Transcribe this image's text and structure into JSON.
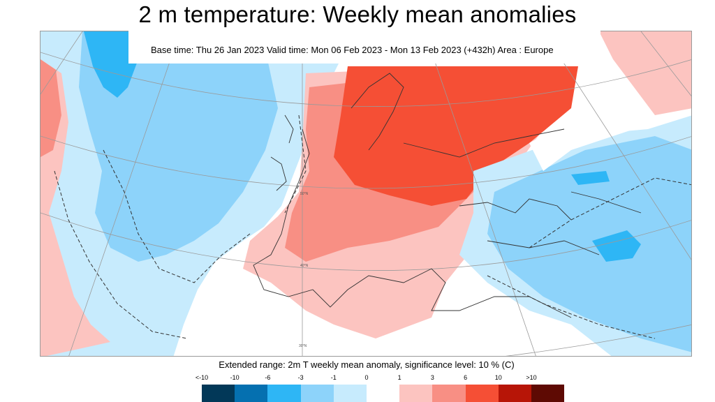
{
  "title": "2 m temperature: Weekly mean anomalies",
  "subtitle": "Base time: Thu 26 Jan 2023 Valid time: Mon 06 Feb 2023 - Mon 13 Feb 2023 (+432h) Area : Europe",
  "colorbar": {
    "caption": "Extended range: 2m T weekly mean anomaly, significance level: 10 % (C)",
    "ticks": [
      "<-10",
      "-10",
      "-6",
      "-3",
      "-1",
      "0",
      "1",
      "3",
      "6",
      "10",
      ">10"
    ],
    "colors": [
      "#023858",
      "#0570b0",
      "#2eb6f5",
      "#8dd3fa",
      "#c7ebfd",
      "#ffffff",
      "#fcc4c0",
      "#f88f84",
      "#f54f35",
      "#b71507",
      "#5e0a03"
    ]
  },
  "map": {
    "graticule_labels": [
      "50°N",
      "40°N",
      "30°N"
    ]
  }
}
